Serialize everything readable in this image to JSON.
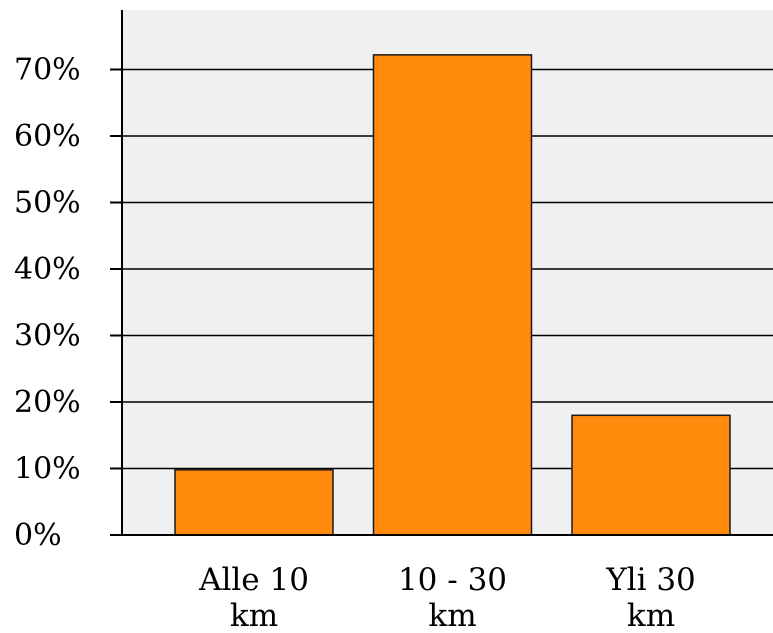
{
  "chart_data": {
    "type": "bar",
    "categories": [
      [
        "Alle 10",
        "km"
      ],
      [
        "10 - 30",
        "km"
      ],
      [
        "Yli 30",
        "km"
      ]
    ],
    "values": [
      9.8,
      72.2,
      18.0
    ],
    "ylim": [
      0,
      80
    ],
    "yticks": [
      0,
      10,
      20,
      30,
      40,
      50,
      60,
      70
    ],
    "ytick_labels": [
      "0%",
      "10%",
      "20%",
      "30%",
      "40%",
      "50%",
      "60%",
      "70%"
    ],
    "grid": true,
    "colors": {
      "bar_fill": "#ff8a0c",
      "bar_stroke": "#1a1a1a",
      "plot_background": "#f0f0f0",
      "grid": "#000000",
      "axis": "#000000"
    }
  }
}
